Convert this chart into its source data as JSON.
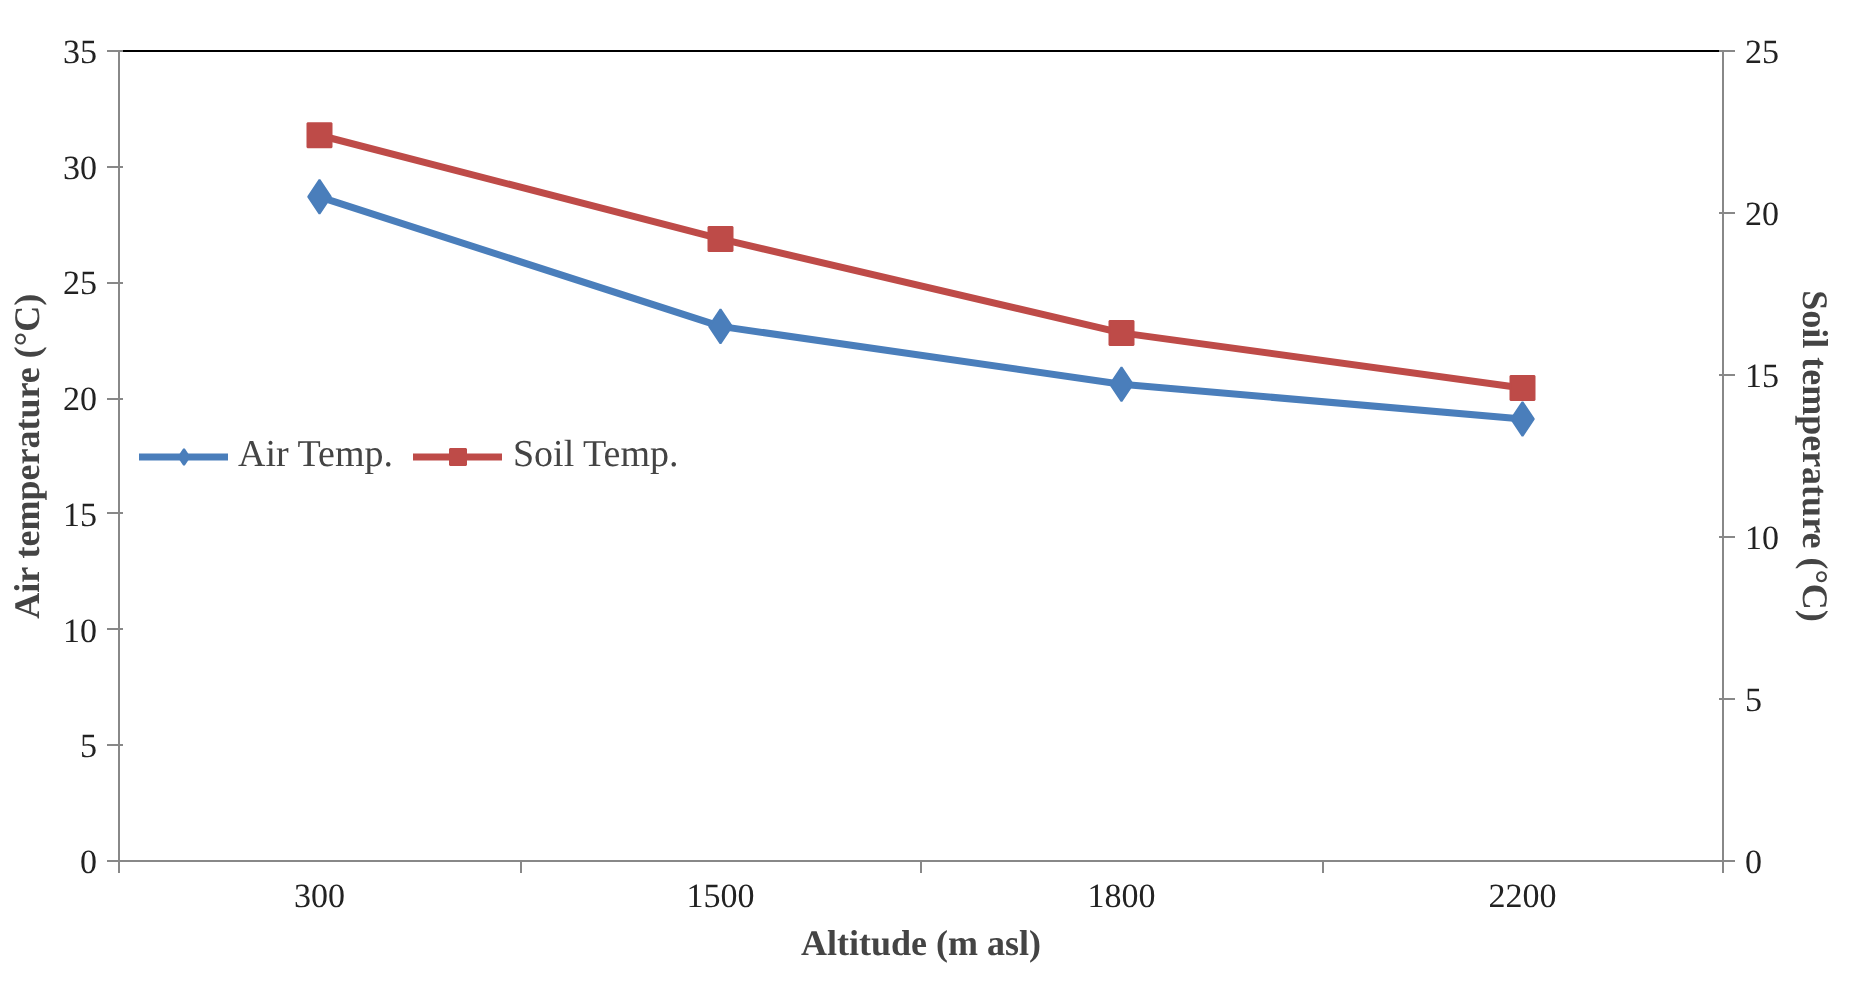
{
  "chart_data": {
    "type": "line",
    "xlabel": "Altitude (m asl)",
    "ylabel": "Air temperature (°C)",
    "y2label": "Soil temperature (°C)",
    "categories": [
      "300",
      "1500",
      "1800",
      "2200"
    ],
    "series": [
      {
        "name": "Air Temp.",
        "color": "#4a7ebb",
        "marker": "diamond",
        "values": [
          28.7,
          23.1,
          20.6,
          19.1
        ]
      },
      {
        "name": "Soil Temp.",
        "color": "#be4b48",
        "marker": "square",
        "axis": "y2",
        "values": [
          22.4,
          19.2,
          16.3,
          14.6
        ]
      }
    ],
    "ylim": [
      0,
      35
    ],
    "yticks": [
      0,
      5,
      10,
      15,
      20,
      25,
      30,
      35
    ],
    "y2lim": [
      0,
      25
    ],
    "y2ticks": [
      0,
      5,
      10,
      15,
      20,
      25
    ],
    "grid": false,
    "legend": "left",
    "line_style": "solid"
  }
}
